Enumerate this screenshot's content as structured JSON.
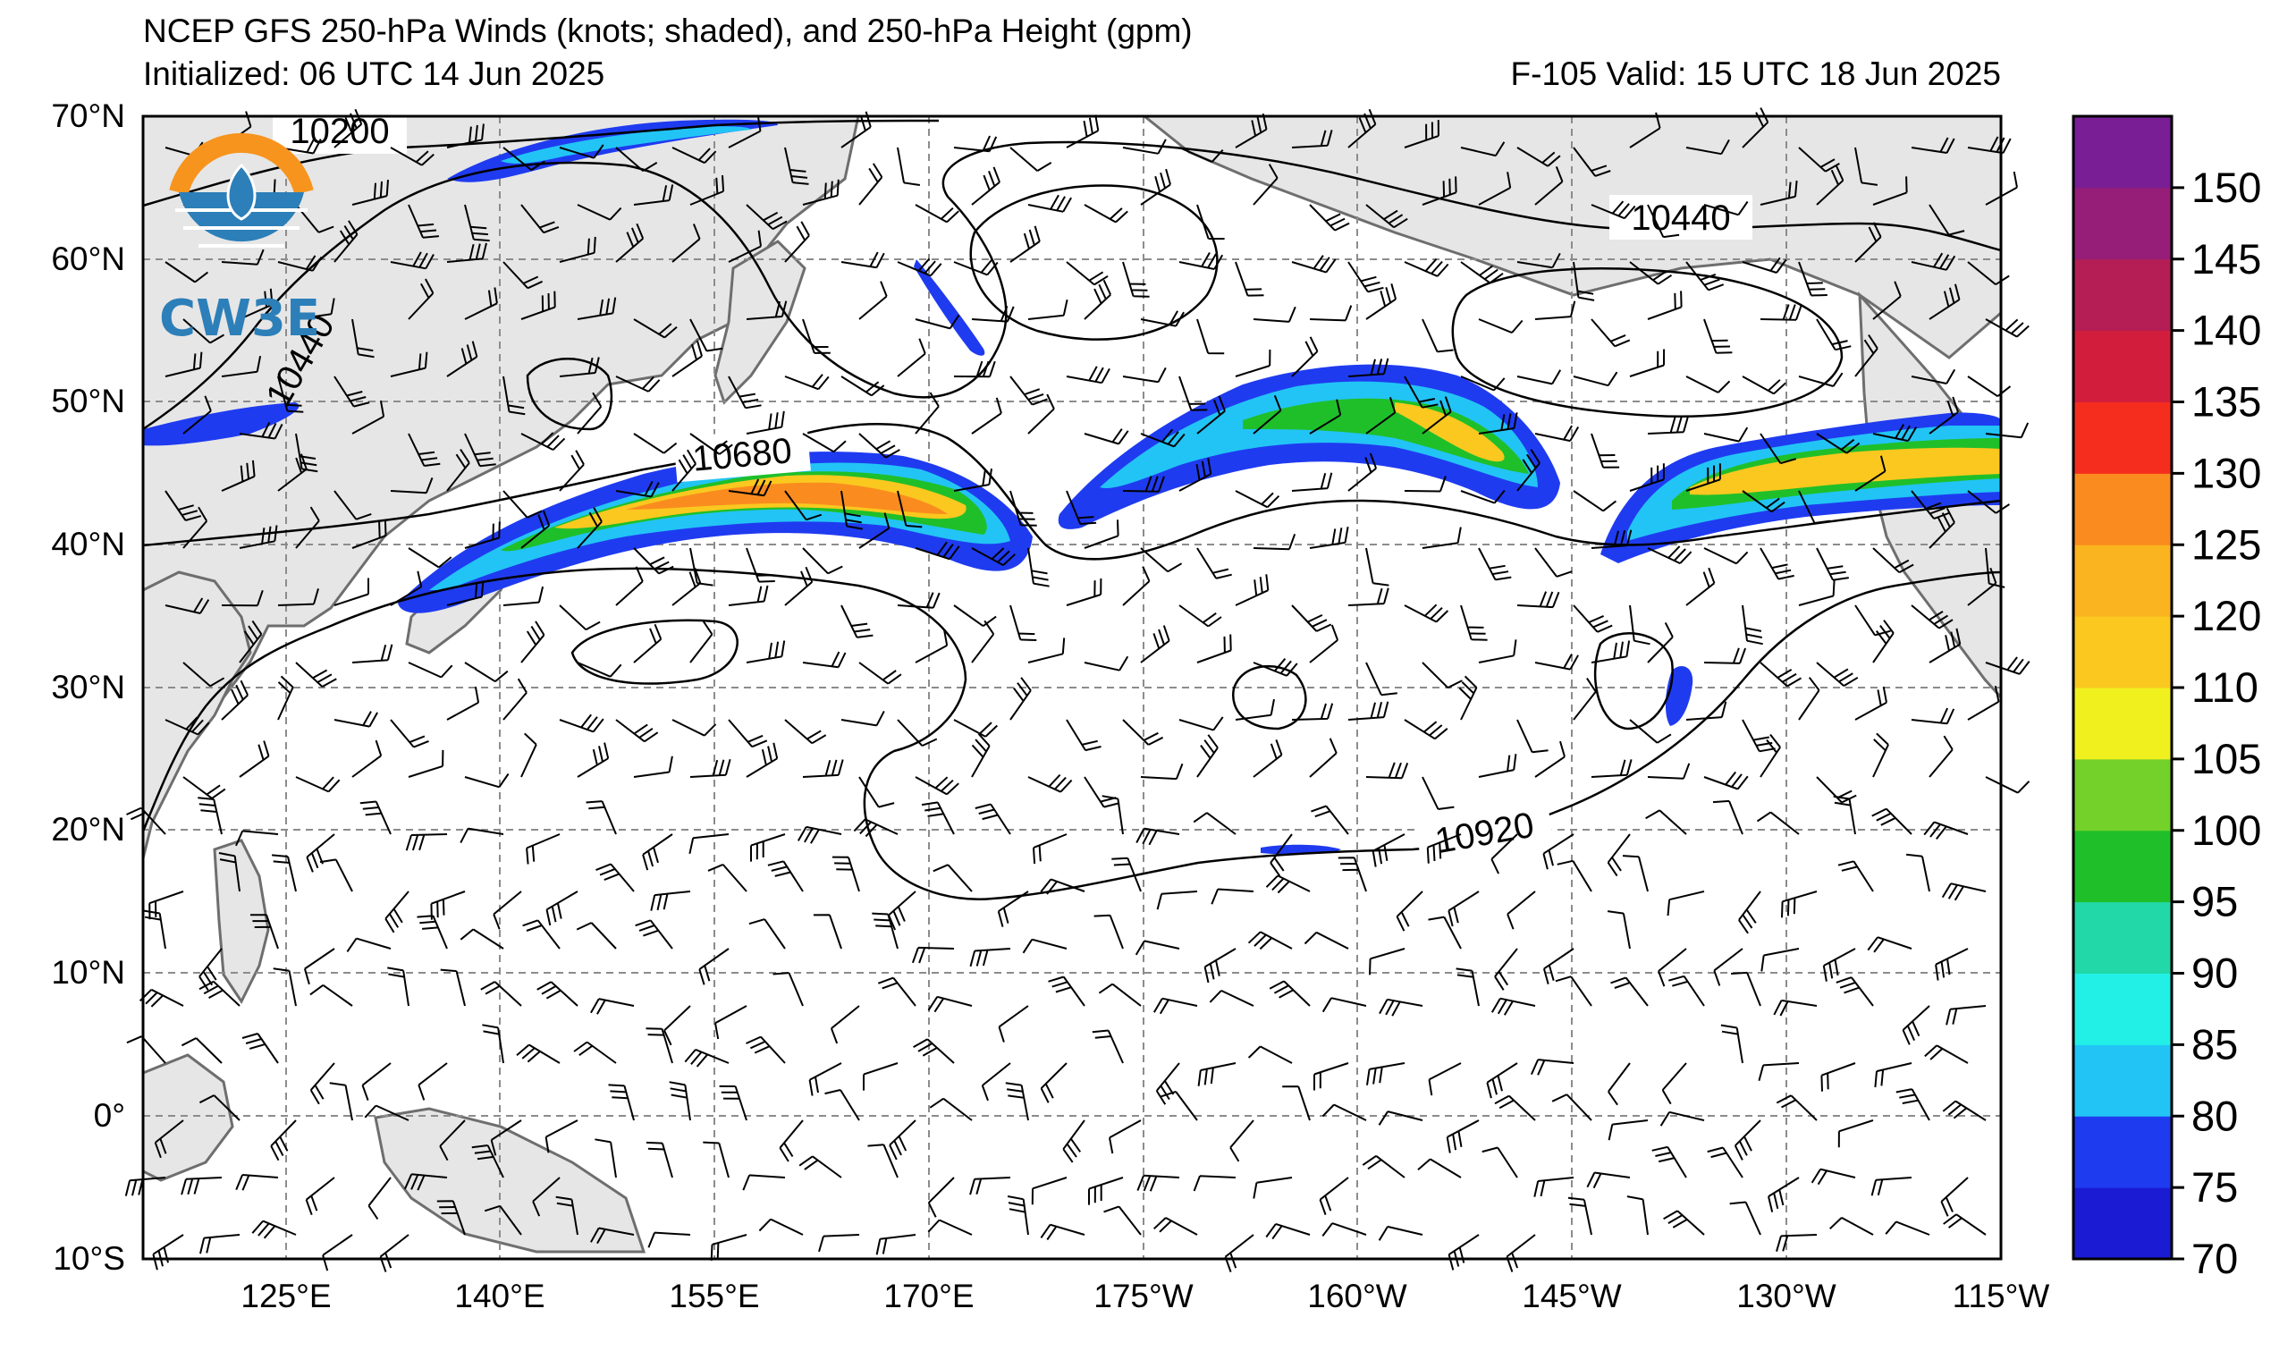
{
  "title": {
    "line1": "NCEP GFS 250-hPa Winds (knots; shaded), and 250-hPa Height (gpm)",
    "init": "Initialized: 06 UTC 14 Jun 2025",
    "valid": "F-105  Valid: 15 UTC 18 Jun 2025"
  },
  "logo": {
    "text": "CW3E",
    "icon": "cw3e-logo-icon"
  },
  "axes": {
    "lat_labels": [
      "70°N",
      "60°N",
      "50°N",
      "40°N",
      "30°N",
      "20°N",
      "10°N",
      "0°",
      "10°S"
    ],
    "lon_labels": [
      "125°E",
      "140°E",
      "155°E",
      "170°E",
      "175°W",
      "160°W",
      "145°W",
      "130°W",
      "115°W"
    ]
  },
  "contour_labels": [
    {
      "id": "10200",
      "text": "10200"
    },
    {
      "id": "10440a",
      "text": "10440"
    },
    {
      "id": "10440b",
      "text": "10440"
    },
    {
      "id": "10680",
      "text": "10680"
    },
    {
      "id": "10920",
      "text": "10920"
    }
  ],
  "colorbar": {
    "levels": [
      "70",
      "75",
      "80",
      "85",
      "90",
      "95",
      "100",
      "105",
      "110",
      "120",
      "125",
      "130",
      "135",
      "140",
      "145",
      "150"
    ],
    "colors": [
      "#1b1bd4",
      "#1f3bf0",
      "#22c4f5",
      "#22f0e6",
      "#22d8a8",
      "#1fbf2a",
      "#73d12a",
      "#f0f01f",
      "#fac81f",
      "#fab41f",
      "#fa8c1f",
      "#f52d1f",
      "#d21e3c",
      "#b41e55",
      "#961e78",
      "#7a1e96"
    ]
  },
  "map_colors": {
    "land": "#e6e6e6",
    "coast": "#6e6e6e",
    "grid": "#8c8c8c"
  }
}
